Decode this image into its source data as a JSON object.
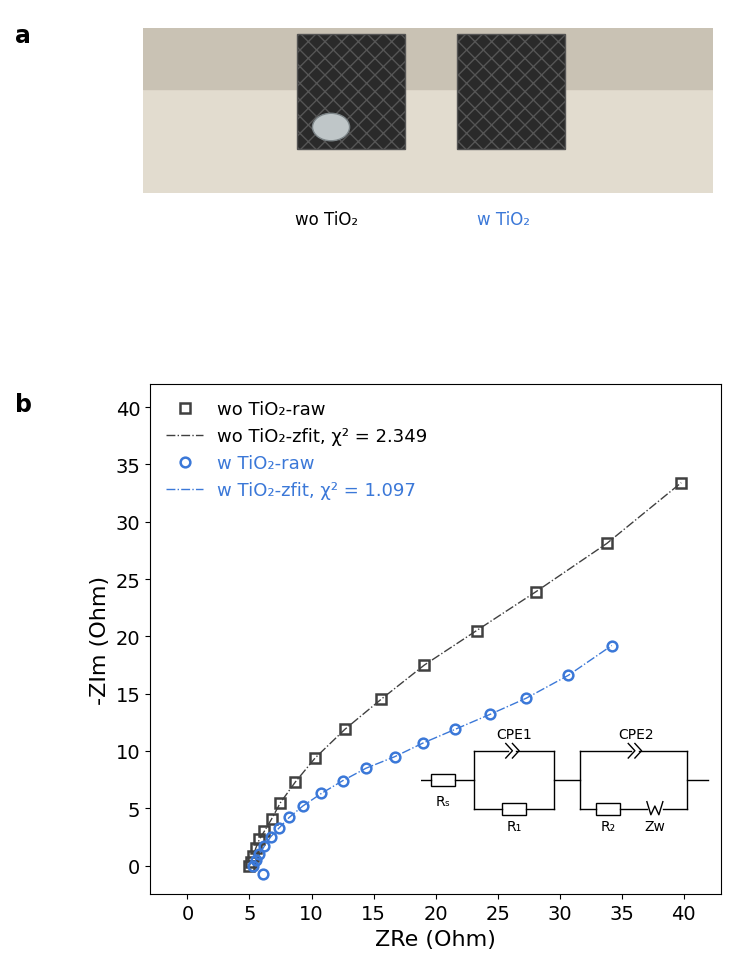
{
  "panels": {
    "a": {
      "label": "a",
      "photo_labels": [
        {
          "text": "wo TiO₂",
          "color": "#000000"
        },
        {
          "text": "w TiO₂",
          "color": "#3b78d8"
        }
      ]
    },
    "b": {
      "label": "b"
    }
  },
  "chart_data": {
    "type": "scatter",
    "xlabel": "ZRe (Ohm)",
    "ylabel": "-ZIm (Ohm)",
    "xlim": [
      -3,
      43
    ],
    "ylim": [
      -2.5,
      42
    ],
    "xticks": [
      0,
      5,
      10,
      15,
      20,
      25,
      30,
      35,
      40
    ],
    "yticks": [
      0,
      5,
      10,
      15,
      20,
      25,
      30,
      35,
      40
    ],
    "legend": "upper left",
    "series": [
      {
        "name": "wo TiO₂-raw",
        "type": "scatter",
        "marker": "square",
        "color": "#404040",
        "x": [
          5.0,
          5.1,
          5.3,
          5.5,
          5.8,
          6.2,
          6.8,
          7.5,
          8.7,
          10.3,
          12.7,
          15.6,
          19.1,
          23.3,
          28.1,
          33.8,
          39.8
        ],
        "values": [
          0.0,
          0.3,
          0.8,
          1.5,
          2.3,
          3.0,
          4.1,
          5.5,
          7.3,
          9.4,
          11.9,
          14.5,
          17.5,
          20.5,
          23.9,
          28.1,
          33.4
        ]
      },
      {
        "name": "wo TiO₂-zfit, χ² = 2.349",
        "type": "line",
        "line_style": "dashdot",
        "color": "#404040",
        "x": [
          5.0,
          5.1,
          5.3,
          5.5,
          5.8,
          6.2,
          6.8,
          7.5,
          8.7,
          10.3,
          12.7,
          15.6,
          19.1,
          23.3,
          28.1,
          33.8,
          39.8
        ],
        "values": [
          0.0,
          0.3,
          0.8,
          1.5,
          2.3,
          3.0,
          4.1,
          5.5,
          7.3,
          9.4,
          11.9,
          14.5,
          17.5,
          20.5,
          23.9,
          28.1,
          33.4
        ]
      },
      {
        "name": "w TiO₂-raw",
        "type": "scatter",
        "marker": "circle",
        "color": "#3b78d8",
        "x": [
          6.1,
          5.3,
          5.5,
          5.8,
          6.2,
          6.7,
          7.4,
          8.2,
          9.3,
          10.8,
          12.5,
          14.4,
          16.7,
          19.0,
          21.6,
          24.4,
          27.3,
          30.7,
          34.2
        ],
        "values": [
          -0.7,
          0.0,
          0.5,
          1.0,
          1.7,
          2.5,
          3.3,
          4.2,
          5.2,
          6.3,
          7.4,
          8.5,
          9.5,
          10.7,
          11.9,
          13.2,
          14.6,
          16.6,
          19.2
        ]
      },
      {
        "name": "w TiO₂-zfit, χ² = 1.097",
        "type": "line",
        "line_style": "dashdot",
        "color": "#3b78d8",
        "x": [
          5.3,
          5.5,
          5.8,
          6.2,
          6.7,
          7.4,
          8.2,
          9.3,
          10.8,
          12.5,
          14.4,
          16.7,
          19.0,
          21.6,
          24.4,
          27.3,
          30.7,
          34.2
        ],
        "values": [
          0.0,
          0.5,
          1.0,
          1.7,
          2.5,
          3.3,
          4.2,
          5.2,
          6.3,
          7.4,
          8.5,
          9.5,
          10.7,
          11.9,
          13.2,
          14.6,
          16.6,
          19.2
        ]
      }
    ],
    "circuit": {
      "Rs": "Rₛ",
      "CPE1": "CPE1",
      "R1": "R₁",
      "CPE2": "CPE2",
      "R2": "R₂",
      "Zw": "Zw"
    }
  }
}
